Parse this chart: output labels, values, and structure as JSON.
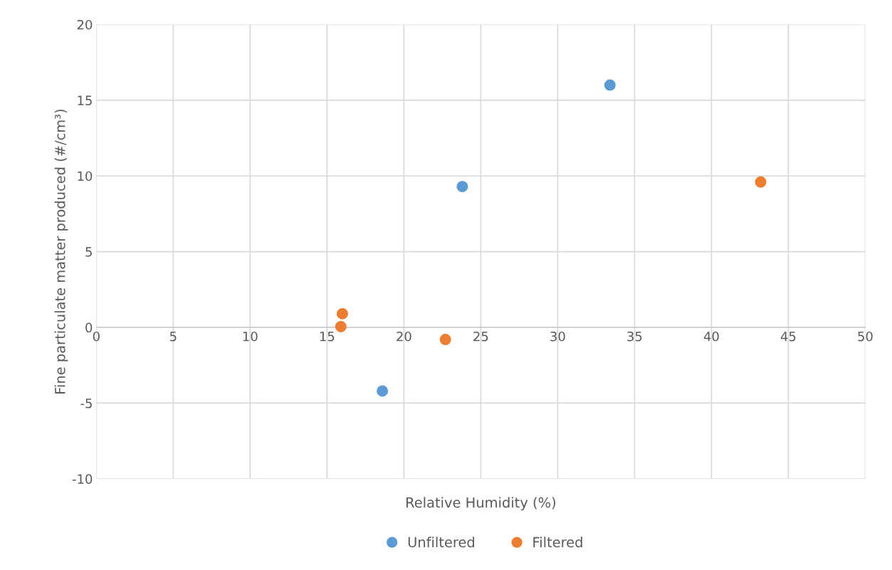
{
  "chart_data": {
    "type": "scatter",
    "xlabel": "Relative Humidity (%)",
    "ylabel": "Fine particulate matter produced (#/cm³)",
    "xlim": [
      0,
      50
    ],
    "xticks": [
      0,
      5,
      10,
      15,
      20,
      25,
      30,
      35,
      40,
      45,
      50
    ],
    "ylim": [
      -10,
      20
    ],
    "yticks": [
      -10,
      -5,
      0,
      5,
      10,
      15,
      20
    ],
    "grid": true,
    "legend": "bottom",
    "marker": "circle",
    "series": [
      {
        "name": "Unfiltered",
        "color": "#5b9bd5",
        "x": [
          18.6,
          23.8,
          33.4
        ],
        "values": [
          -4.2,
          9.3,
          16.0
        ]
      },
      {
        "name": "Filtered",
        "color": "#ed7d31",
        "x": [
          16.0,
          15.9,
          22.7,
          43.2
        ],
        "values": [
          0.9,
          0.05,
          -0.8,
          9.6
        ]
      }
    ]
  }
}
